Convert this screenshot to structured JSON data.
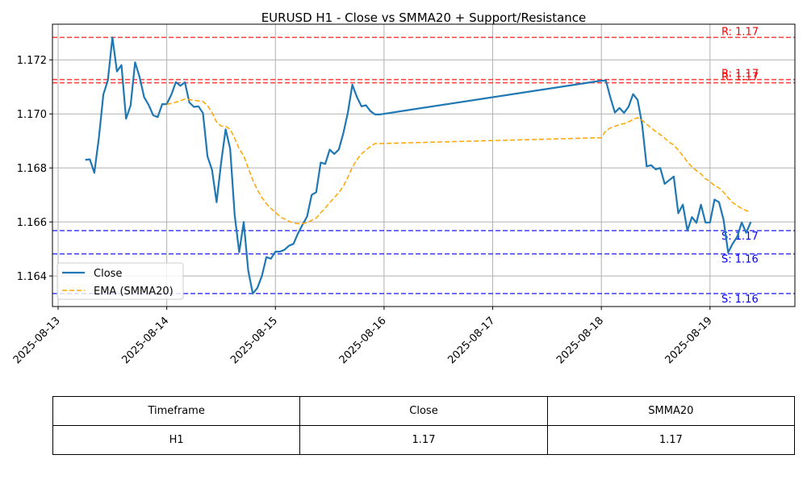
{
  "chart_data": {
    "type": "line",
    "title": "EURUSD H1 - Close vs SMMA20 + Support/Resistance",
    "xlabel": "",
    "ylabel": "",
    "x_ticks": [
      "2025-08-13",
      "2025-08-14",
      "2025-08-15",
      "2025-08-16",
      "2025-08-17",
      "2025-08-18",
      "2025-08-19"
    ],
    "y_ticks": [
      "1.164",
      "1.166",
      "1.168",
      "1.170",
      "1.172"
    ],
    "xlim": [
      "2025-08-12T22:45",
      "2025-08-19T18:45"
    ],
    "ylim": [
      1.16287,
      1.17332
    ],
    "grid": true,
    "legend_position": "lower-left",
    "colors": {
      "close": "#1f77b4",
      "ema": "#ffa500",
      "resistance": "#ff0000",
      "support": "#0000ff"
    },
    "series": [
      {
        "name": "Close",
        "style": "solid",
        "points": [
          [
            "2025-08-13T06:00",
            1.1683
          ],
          [
            "2025-08-13T07:00",
            1.16832
          ],
          [
            "2025-08-13T08:00",
            1.16782
          ],
          [
            "2025-08-13T09:00",
            1.16911
          ],
          [
            "2025-08-13T10:00",
            1.17072
          ],
          [
            "2025-08-13T11:00",
            1.17125
          ],
          [
            "2025-08-13T12:00",
            1.17283
          ],
          [
            "2025-08-13T13:00",
            1.17157
          ],
          [
            "2025-08-13T14:00",
            1.17181
          ],
          [
            "2025-08-13T15:00",
            1.16982
          ],
          [
            "2025-08-13T16:00",
            1.17031
          ],
          [
            "2025-08-13T17:00",
            1.17191
          ],
          [
            "2025-08-13T18:00",
            1.17136
          ],
          [
            "2025-08-13T19:00",
            1.17062
          ],
          [
            "2025-08-13T20:00",
            1.17033
          ],
          [
            "2025-08-13T21:00",
            1.16995
          ],
          [
            "2025-08-13T22:00",
            1.16988
          ],
          [
            "2025-08-13T23:00",
            1.17036
          ],
          [
            "2025-08-14T00:00",
            1.17036
          ],
          [
            "2025-08-14T01:00",
            1.17071
          ],
          [
            "2025-08-14T02:00",
            1.17118
          ],
          [
            "2025-08-14T03:00",
            1.17104
          ],
          [
            "2025-08-14T04:00",
            1.17117
          ],
          [
            "2025-08-14T05:00",
            1.17042
          ],
          [
            "2025-08-14T06:00",
            1.17026
          ],
          [
            "2025-08-14T07:00",
            1.17028
          ],
          [
            "2025-08-14T08:00",
            1.17003
          ],
          [
            "2025-08-14T09:00",
            1.16843
          ],
          [
            "2025-08-14T10:00",
            1.16793
          ],
          [
            "2025-08-14T11:00",
            1.16673
          ],
          [
            "2025-08-14T12:00",
            1.16819
          ],
          [
            "2025-08-14T13:00",
            1.16943
          ],
          [
            "2025-08-14T14:00",
            1.16871
          ],
          [
            "2025-08-14T15:00",
            1.16626
          ],
          [
            "2025-08-14T16:00",
            1.16488
          ],
          [
            "2025-08-14T17:00",
            1.166
          ],
          [
            "2025-08-14T18:00",
            1.1642
          ],
          [
            "2025-08-14T19:00",
            1.16335
          ],
          [
            "2025-08-14T20:00",
            1.16355
          ],
          [
            "2025-08-14T21:00",
            1.164
          ],
          [
            "2025-08-14T22:00",
            1.1647
          ],
          [
            "2025-08-14T23:00",
            1.16464
          ],
          [
            "2025-08-15T00:00",
            1.1649
          ],
          [
            "2025-08-15T01:00",
            1.1649
          ],
          [
            "2025-08-15T02:00",
            1.16497
          ],
          [
            "2025-08-15T03:00",
            1.16512
          ],
          [
            "2025-08-15T04:00",
            1.16519
          ],
          [
            "2025-08-15T05:00",
            1.16558
          ],
          [
            "2025-08-15T06:00",
            1.1659
          ],
          [
            "2025-08-15T07:00",
            1.1662
          ],
          [
            "2025-08-15T08:00",
            1.167
          ],
          [
            "2025-08-15T09:00",
            1.1671
          ],
          [
            "2025-08-15T10:00",
            1.1682
          ],
          [
            "2025-08-15T11:00",
            1.16815
          ],
          [
            "2025-08-15T12:00",
            1.16868
          ],
          [
            "2025-08-15T13:00",
            1.16852
          ],
          [
            "2025-08-15T14:00",
            1.16868
          ],
          [
            "2025-08-15T15:00",
            1.16928
          ],
          [
            "2025-08-15T16:00",
            1.17004
          ],
          [
            "2025-08-15T17:00",
            1.17108
          ],
          [
            "2025-08-15T18:00",
            1.17062
          ],
          [
            "2025-08-15T19:00",
            1.17028
          ],
          [
            "2025-08-15T20:00",
            1.17032
          ],
          [
            "2025-08-15T21:00",
            1.1701
          ],
          [
            "2025-08-15T22:00",
            1.16998
          ],
          [
            "2025-08-15T23:00",
            1.16998
          ],
          [
            "2025-08-18T00:00",
            1.17123
          ],
          [
            "2025-08-18T01:00",
            1.17123
          ],
          [
            "2025-08-18T02:00",
            1.1706
          ],
          [
            "2025-08-18T03:00",
            1.17005
          ],
          [
            "2025-08-18T04:00",
            1.17022
          ],
          [
            "2025-08-18T05:00",
            1.17004
          ],
          [
            "2025-08-18T06:00",
            1.17026
          ],
          [
            "2025-08-18T07:00",
            1.17073
          ],
          [
            "2025-08-18T08:00",
            1.17052
          ],
          [
            "2025-08-18T09:00",
            1.16961
          ],
          [
            "2025-08-18T10:00",
            1.16806
          ],
          [
            "2025-08-18T11:00",
            1.1681
          ],
          [
            "2025-08-18T12:00",
            1.16795
          ],
          [
            "2025-08-18T13:00",
            1.168
          ],
          [
            "2025-08-18T14:00",
            1.16741
          ],
          [
            "2025-08-18T15:00",
            1.16755
          ],
          [
            "2025-08-18T16:00",
            1.16768
          ],
          [
            "2025-08-18T17:00",
            1.16632
          ],
          [
            "2025-08-18T18:00",
            1.16664
          ],
          [
            "2025-08-18T19:00",
            1.16568
          ],
          [
            "2025-08-18T20:00",
            1.16618
          ],
          [
            "2025-08-18T21:00",
            1.16597
          ],
          [
            "2025-08-18T22:00",
            1.16664
          ],
          [
            "2025-08-18T23:00",
            1.16598
          ],
          [
            "2025-08-19T00:00",
            1.16598
          ],
          [
            "2025-08-19T01:00",
            1.16683
          ],
          [
            "2025-08-19T02:00",
            1.16673
          ],
          [
            "2025-08-19T03:00",
            1.16608
          ],
          [
            "2025-08-19T04:00",
            1.16487
          ],
          [
            "2025-08-19T05:00",
            1.1652
          ],
          [
            "2025-08-19T06:00",
            1.16545
          ],
          [
            "2025-08-19T07:00",
            1.16598
          ],
          [
            "2025-08-19T08:00",
            1.1656
          ],
          [
            "2025-08-19T09:00",
            1.166
          ]
        ]
      },
      {
        "name": "EMA (SMMA20)",
        "style": "dashed",
        "points": [
          [
            "2025-08-14T00:00",
            1.17035
          ],
          [
            "2025-08-14T02:00",
            1.17043
          ],
          [
            "2025-08-14T04:00",
            1.17055
          ],
          [
            "2025-08-14T06:00",
            1.1705
          ],
          [
            "2025-08-14T08:00",
            1.17046
          ],
          [
            "2025-08-14T09:00",
            1.17031
          ],
          [
            "2025-08-14T10:00",
            1.17005
          ],
          [
            "2025-08-14T11:00",
            1.1697
          ],
          [
            "2025-08-14T12:00",
            1.16955
          ],
          [
            "2025-08-14T13:00",
            1.16954
          ],
          [
            "2025-08-14T14:00",
            1.16943
          ],
          [
            "2025-08-14T15:00",
            1.1691
          ],
          [
            "2025-08-14T16:00",
            1.1687
          ],
          [
            "2025-08-14T17:00",
            1.16845
          ],
          [
            "2025-08-14T18:00",
            1.168
          ],
          [
            "2025-08-14T19:00",
            1.16755
          ],
          [
            "2025-08-14T20:00",
            1.1672
          ],
          [
            "2025-08-14T21:00",
            1.1669
          ],
          [
            "2025-08-14T22:00",
            1.16668
          ],
          [
            "2025-08-14T23:00",
            1.1665
          ],
          [
            "2025-08-15T00:00",
            1.16636
          ],
          [
            "2025-08-15T01:00",
            1.1662
          ],
          [
            "2025-08-15T02:00",
            1.16611
          ],
          [
            "2025-08-15T03:00",
            1.16603
          ],
          [
            "2025-08-15T04:00",
            1.16596
          ],
          [
            "2025-08-15T05:00",
            1.16594
          ],
          [
            "2025-08-15T06:00",
            1.16594
          ],
          [
            "2025-08-15T07:00",
            1.16598
          ],
          [
            "2025-08-15T08:00",
            1.16606
          ],
          [
            "2025-08-15T09:00",
            1.16614
          ],
          [
            "2025-08-15T10:00",
            1.16634
          ],
          [
            "2025-08-15T11:00",
            1.16652
          ],
          [
            "2025-08-15T12:00",
            1.16672
          ],
          [
            "2025-08-15T13:00",
            1.1669
          ],
          [
            "2025-08-15T14:00",
            1.16708
          ],
          [
            "2025-08-15T15:00",
            1.16732
          ],
          [
            "2025-08-15T16:00",
            1.16765
          ],
          [
            "2025-08-15T17:00",
            1.16803
          ],
          [
            "2025-08-15T18:00",
            1.1683
          ],
          [
            "2025-08-15T19:00",
            1.16852
          ],
          [
            "2025-08-15T20:00",
            1.16866
          ],
          [
            "2025-08-15T21:00",
            1.1688
          ],
          [
            "2025-08-15T22:00",
            1.1689
          ],
          [
            "2025-08-15T23:00",
            1.1689
          ],
          [
            "2025-08-18T00:00",
            1.16912
          ],
          [
            "2025-08-18T01:00",
            1.16938
          ],
          [
            "2025-08-18T02:00",
            1.16948
          ],
          [
            "2025-08-18T03:00",
            1.16954
          ],
          [
            "2025-08-18T04:00",
            1.1696
          ],
          [
            "2025-08-18T05:00",
            1.16964
          ],
          [
            "2025-08-18T06:00",
            1.1697
          ],
          [
            "2025-08-18T07:00",
            1.1698
          ],
          [
            "2025-08-18T08:00",
            1.16986
          ],
          [
            "2025-08-18T09:00",
            1.16976
          ],
          [
            "2025-08-18T10:00",
            1.16962
          ],
          [
            "2025-08-18T11:00",
            1.16948
          ],
          [
            "2025-08-18T12:00",
            1.16935
          ],
          [
            "2025-08-18T13:00",
            1.16924
          ],
          [
            "2025-08-18T14:00",
            1.1691
          ],
          [
            "2025-08-18T15:00",
            1.16895
          ],
          [
            "2025-08-18T16:00",
            1.16885
          ],
          [
            "2025-08-18T17:00",
            1.16866
          ],
          [
            "2025-08-18T18:00",
            1.16845
          ],
          [
            "2025-08-18T19:00",
            1.16822
          ],
          [
            "2025-08-18T20:00",
            1.16804
          ],
          [
            "2025-08-18T21:00",
            1.1679
          ],
          [
            "2025-08-18T22:00",
            1.16778
          ],
          [
            "2025-08-18T23:00",
            1.1676
          ],
          [
            "2025-08-19T00:00",
            1.1675
          ],
          [
            "2025-08-19T01:00",
            1.16734
          ],
          [
            "2025-08-19T02:00",
            1.16726
          ],
          [
            "2025-08-19T03:00",
            1.1671
          ],
          [
            "2025-08-19T04:00",
            1.1669
          ],
          [
            "2025-08-19T05:00",
            1.16672
          ],
          [
            "2025-08-19T06:00",
            1.1666
          ],
          [
            "2025-08-19T07:00",
            1.1665
          ],
          [
            "2025-08-19T08:00",
            1.16642
          ],
          [
            "2025-08-19T09:00",
            1.16637
          ]
        ]
      }
    ],
    "resistance_levels": [
      {
        "value": 1.17283,
        "label": "R: 1.17"
      },
      {
        "value": 1.17127,
        "label": "R: 1.17"
      },
      {
        "value": 1.17115,
        "label": "R: 1.17"
      }
    ],
    "support_levels": [
      {
        "value": 1.16568,
        "label": "S: 1.17"
      },
      {
        "value": 1.16482,
        "label": "S: 1.16"
      },
      {
        "value": 1.16335,
        "label": "S: 1.16"
      }
    ]
  },
  "table": {
    "headers": [
      "Timeframe",
      "Close",
      "SMMA20"
    ],
    "rows": [
      [
        "H1",
        "1.17",
        "1.17"
      ]
    ]
  }
}
